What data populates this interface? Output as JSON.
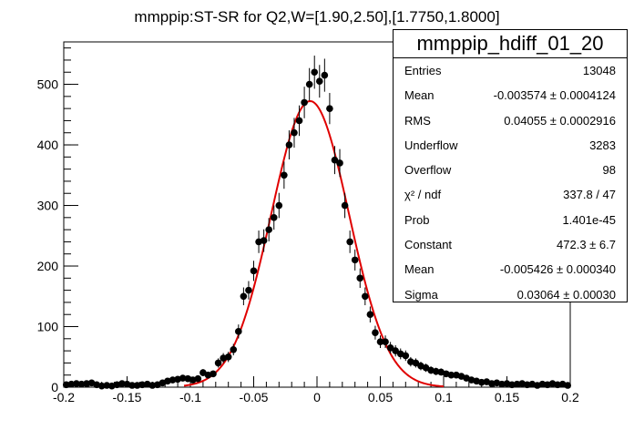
{
  "chart_data": {
    "type": "scatter",
    "title": "mmppip:ST-SR for Q2,W=[1.90,2.50],[1.7750,1.8000]",
    "xlabel": "",
    "ylabel": "",
    "xlim": [
      -0.2,
      0.2
    ],
    "ylim": [
      0,
      570
    ],
    "x_ticks": [
      "-0.2",
      "-0.15",
      "-0.1",
      "-0.05",
      "0",
      "0.05",
      "0.1",
      "0.15",
      "0.2"
    ],
    "y_ticks": [
      "0",
      "100",
      "200",
      "300",
      "400",
      "500"
    ],
    "grid": false,
    "colors": {
      "points": "#000000",
      "fit": "#e00000"
    },
    "series": [
      {
        "x": [
          -0.198,
          -0.194,
          -0.19,
          -0.186,
          -0.182,
          -0.178,
          -0.174,
          -0.17,
          -0.166,
          -0.162,
          -0.158,
          -0.154,
          -0.15,
          -0.146,
          -0.142,
          -0.138,
          -0.134,
          -0.13,
          -0.126,
          -0.122,
          -0.118,
          -0.114,
          -0.11,
          -0.106,
          -0.102,
          -0.098,
          -0.094,
          -0.09,
          -0.086,
          -0.082,
          -0.078,
          -0.074,
          -0.07,
          -0.066,
          -0.062,
          -0.058,
          -0.054,
          -0.05,
          -0.046,
          -0.042,
          -0.038,
          -0.034,
          -0.03,
          -0.026,
          -0.022,
          -0.018,
          -0.014,
          -0.01,
          -0.006,
          -0.002,
          0.002,
          0.006,
          0.01,
          0.014,
          0.018,
          0.022,
          0.026,
          0.03,
          0.034,
          0.038,
          0.042,
          0.046,
          0.05,
          0.054,
          0.058,
          0.062,
          0.066,
          0.07,
          0.074,
          0.078,
          0.082,
          0.086,
          0.09,
          0.094,
          0.098,
          0.102,
          0.106,
          0.11,
          0.114,
          0.118,
          0.122,
          0.126,
          0.13,
          0.134,
          0.138,
          0.142,
          0.146,
          0.15,
          0.154,
          0.158,
          0.162,
          0.166,
          0.17,
          0.174,
          0.178,
          0.182,
          0.186,
          0.19,
          0.194,
          0.198
        ],
        "y": [
          4,
          5,
          6,
          5,
          6,
          7,
          4,
          2,
          3,
          2,
          4,
          6,
          5,
          3,
          3,
          4,
          5,
          3,
          4,
          7,
          10,
          12,
          13,
          15,
          14,
          12,
          14,
          24,
          20,
          22,
          40,
          48,
          50,
          62,
          92,
          150,
          160,
          192,
          240,
          242,
          260,
          280,
          300,
          350,
          400,
          420,
          440,
          470,
          500,
          520,
          505,
          515,
          460,
          375,
          370,
          300,
          240,
          210,
          180,
          150,
          120,
          90,
          75,
          75,
          65,
          60,
          55,
          52,
          42,
          40,
          35,
          32,
          28,
          26,
          25,
          22,
          20,
          20,
          18,
          15,
          12,
          10,
          8,
          9,
          6,
          7,
          5,
          6,
          4,
          5,
          6,
          4,
          5,
          3,
          5,
          4,
          6,
          4,
          5,
          3
        ]
      }
    ],
    "fit": {
      "constant": 472.3,
      "mean": -0.005426,
      "sigma": 0.03064
    }
  },
  "stats": {
    "title": "mmppip_hdiff_01_20",
    "rows": [
      {
        "label": "Entries",
        "value": "13048"
      },
      {
        "label": "Mean",
        "value": "-0.003574  ± 0.0004124"
      },
      {
        "label": "RMS",
        "value": "0.04055  ± 0.0002916"
      },
      {
        "label": "Underflow",
        "value": "3283"
      },
      {
        "label": "Overflow",
        "value": "98"
      },
      {
        "label": "χ² / ndf",
        "value": "337.8 / 47"
      },
      {
        "label": "Prob",
        "value": "1.401e-45"
      },
      {
        "label": "Constant",
        "value": "472.3  ± 6.7"
      },
      {
        "label": "Mean",
        "value": "-0.005426  ± 0.000340"
      },
      {
        "label": "Sigma",
        "value": "0.03064  ± 0.00030"
      }
    ]
  }
}
